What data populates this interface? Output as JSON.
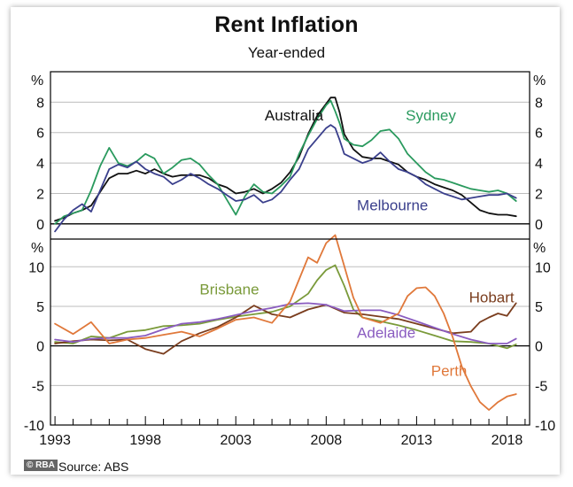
{
  "chart_data": {
    "type": "line",
    "title": "Rent Inflation",
    "subtitle": "Year-ended",
    "source": "Source:   ABS",
    "logo": "© RBA",
    "x_ticks": [
      "1993",
      "1998",
      "2003",
      "2008",
      "2013",
      "2018"
    ],
    "xlim": [
      1992.75,
      2019.25
    ],
    "panels": [
      {
        "name": "top",
        "unit_left": "%",
        "unit_right": "%",
        "ylim": [
          -1,
          10
        ],
        "y_ticks": [
          0,
          2,
          4,
          6,
          8
        ],
        "y_tick_labels": [
          "0",
          "2",
          "4",
          "6",
          "8"
        ],
        "grid": true,
        "series": [
          {
            "name": "Australia",
            "color": "#111111",
            "x": [
              1993.0,
              1993.5,
              1994.0,
              1994.5,
              1995.0,
              1995.5,
              1996.0,
              1996.5,
              1997.0,
              1997.5,
              1998.0,
              1998.5,
              1999.0,
              1999.5,
              2000.0,
              2000.5,
              2001.0,
              2001.5,
              2002.0,
              2002.5,
              2003.0,
              2003.5,
              2004.0,
              2004.5,
              2005.0,
              2005.5,
              2006.0,
              2006.5,
              2007.0,
              2007.5,
              2008.0,
              2008.25,
              2008.5,
              2008.75,
              2009.0,
              2009.5,
              2010.0,
              2010.5,
              2011.0,
              2011.5,
              2012.0,
              2012.5,
              2013.0,
              2013.5,
              2014.0,
              2014.5,
              2015.0,
              2015.5,
              2016.0,
              2016.5,
              2017.0,
              2017.5,
              2018.0,
              2018.5
            ],
            "y": [
              0.2,
              0.4,
              0.7,
              0.9,
              1.2,
              2.1,
              3.0,
              3.3,
              3.3,
              3.5,
              3.3,
              3.6,
              3.3,
              3.1,
              3.2,
              3.2,
              3.2,
              3.0,
              2.6,
              2.4,
              2.0,
              2.1,
              2.3,
              2.0,
              2.3,
              2.7,
              3.4,
              4.4,
              5.9,
              7.1,
              7.9,
              8.3,
              8.3,
              7.3,
              5.9,
              4.9,
              4.4,
              4.3,
              4.3,
              4.1,
              3.9,
              3.4,
              3.1,
              2.9,
              2.6,
              2.4,
              2.2,
              1.9,
              1.4,
              0.9,
              0.7,
              0.6,
              0.6,
              0.5
            ]
          },
          {
            "name": "Sydney",
            "color": "#2a9a5e",
            "x": [
              1993.0,
              1993.5,
              1994.0,
              1994.5,
              1995.0,
              1995.5,
              1996.0,
              1996.5,
              1997.0,
              1997.5,
              1998.0,
              1998.5,
              1999.0,
              1999.5,
              2000.0,
              2000.5,
              2001.0,
              2001.5,
              2002.0,
              2002.5,
              2003.0,
              2003.5,
              2004.0,
              2004.5,
              2005.0,
              2005.5,
              2006.0,
              2006.5,
              2007.0,
              2007.5,
              2008.0,
              2008.25,
              2008.5,
              2008.75,
              2009.0,
              2009.5,
              2010.0,
              2010.5,
              2011.0,
              2011.5,
              2012.0,
              2012.5,
              2013.0,
              2013.5,
              2014.0,
              2014.5,
              2015.0,
              2015.5,
              2016.0,
              2016.5,
              2017.0,
              2017.5,
              2018.0,
              2018.5
            ],
            "y": [
              0.0,
              0.5,
              0.7,
              0.9,
              2.2,
              3.8,
              5.0,
              4.0,
              3.8,
              4.1,
              4.6,
              4.3,
              3.3,
              3.7,
              4.2,
              4.3,
              3.9,
              3.2,
              2.6,
              1.6,
              0.6,
              1.8,
              2.6,
              2.1,
              2.0,
              2.5,
              3.1,
              4.6,
              5.8,
              6.9,
              7.8,
              8.1,
              7.4,
              6.6,
              5.6,
              5.2,
              5.1,
              5.5,
              6.1,
              6.2,
              5.6,
              4.6,
              4.0,
              3.4,
              3.0,
              2.9,
              2.7,
              2.5,
              2.3,
              2.2,
              2.1,
              2.2,
              2.0,
              1.5
            ]
          },
          {
            "name": "Melbourne",
            "color": "#3a3f8c",
            "x": [
              1993.0,
              1993.5,
              1994.0,
              1994.5,
              1995.0,
              1995.5,
              1996.0,
              1996.5,
              1997.0,
              1997.5,
              1998.0,
              1998.5,
              1999.0,
              1999.5,
              2000.0,
              2000.5,
              2001.0,
              2001.5,
              2002.0,
              2002.5,
              2003.0,
              2003.5,
              2004.0,
              2004.5,
              2005.0,
              2005.5,
              2006.0,
              2006.5,
              2007.0,
              2007.5,
              2008.0,
              2008.25,
              2008.5,
              2008.75,
              2009.0,
              2009.5,
              2010.0,
              2010.5,
              2011.0,
              2011.5,
              2012.0,
              2012.5,
              2013.0,
              2013.5,
              2014.0,
              2014.5,
              2015.0,
              2015.5,
              2016.0,
              2016.5,
              2017.0,
              2017.5,
              2018.0,
              2018.5
            ],
            "y": [
              -0.5,
              0.3,
              0.9,
              1.3,
              0.8,
              2.2,
              3.6,
              3.9,
              3.7,
              4.1,
              3.6,
              3.3,
              3.1,
              2.6,
              2.9,
              3.3,
              3.0,
              2.6,
              2.3,
              1.9,
              1.5,
              1.6,
              1.9,
              1.4,
              1.6,
              2.1,
              2.9,
              3.6,
              4.9,
              5.6,
              6.3,
              6.5,
              6.3,
              5.5,
              4.6,
              4.3,
              4.0,
              4.2,
              4.7,
              4.1,
              3.6,
              3.4,
              3.1,
              2.6,
              2.3,
              2.0,
              1.8,
              1.6,
              1.7,
              1.8,
              1.9,
              1.9,
              2.0,
              1.7
            ]
          }
        ],
        "labels": [
          {
            "text": "Australia",
            "series": "Australia",
            "x": 2004.6,
            "y": 6.8
          },
          {
            "text": "Sydney",
            "series": "Sydney",
            "x": 2012.4,
            "y": 6.8
          },
          {
            "text": "Melbourne",
            "series": "Melbourne",
            "x": 2009.7,
            "y": 0.9
          }
        ]
      },
      {
        "name": "bottom",
        "unit_left": "%",
        "unit_right": "%",
        "ylim": [
          -10,
          13.5
        ],
        "y_ticks": [
          -10,
          -5,
          0,
          5,
          10
        ],
        "y_tick_labels": [
          "-10",
          "-5",
          "0",
          "5",
          "10"
        ],
        "grid": true,
        "series": [
          {
            "name": "Brisbane",
            "color": "#7a9a3a",
            "x": [
              1993.0,
              1994.0,
              1995.0,
              1996.0,
              1997.0,
              1998.0,
              1999.0,
              2000.0,
              2001.0,
              2002.0,
              2003.0,
              2004.0,
              2005.0,
              2006.0,
              2007.0,
              2007.5,
              2008.0,
              2008.5,
              2009.0,
              2009.5,
              2010.0,
              2011.0,
              2012.0,
              2013.0,
              2014.0,
              2015.0,
              2016.0,
              2017.0,
              2018.0,
              2018.5
            ],
            "y": [
              0.5,
              0.3,
              1.2,
              1.0,
              1.8,
              2.0,
              2.5,
              2.6,
              2.8,
              3.3,
              3.7,
              4.0,
              4.3,
              5.0,
              6.6,
              8.3,
              9.6,
              10.2,
              7.6,
              4.6,
              3.6,
              3.1,
              2.6,
              2.0,
              1.3,
              0.6,
              0.5,
              0.3,
              -0.3,
              0.2
            ]
          },
          {
            "name": "Hobart",
            "color": "#7a3d1e",
            "x": [
              1993.0,
              1994.0,
              1995.0,
              1996.0,
              1997.0,
              1998.0,
              1999.0,
              2000.0,
              2001.0,
              2002.0,
              2003.0,
              2004.0,
              2005.0,
              2006.0,
              2007.0,
              2008.0,
              2009.0,
              2010.0,
              2011.0,
              2012.0,
              2013.0,
              2014.0,
              2015.0,
              2016.0,
              2016.5,
              2017.0,
              2017.5,
              2018.0,
              2018.5
            ],
            "y": [
              0.3,
              0.6,
              0.8,
              0.7,
              0.8,
              -0.4,
              -1.0,
              0.6,
              1.6,
              2.4,
              3.6,
              5.1,
              4.0,
              3.6,
              4.6,
              5.2,
              4.2,
              4.0,
              3.7,
              3.4,
              2.8,
              2.2,
              1.6,
              1.8,
              3.0,
              3.6,
              4.1,
              3.8,
              5.4
            ]
          },
          {
            "name": "Adelaide",
            "color": "#8a5cc0",
            "x": [
              1993.0,
              1994.0,
              1995.0,
              1996.0,
              1997.0,
              1998.0,
              1999.0,
              2000.0,
              2001.0,
              2002.0,
              2003.0,
              2004.0,
              2005.0,
              2006.0,
              2007.0,
              2008.0,
              2009.0,
              2010.0,
              2011.0,
              2012.0,
              2013.0,
              2014.0,
              2015.0,
              2016.0,
              2017.0,
              2018.0,
              2018.5
            ],
            "y": [
              0.8,
              0.5,
              0.9,
              1.0,
              1.0,
              1.3,
              2.1,
              2.8,
              3.0,
              3.4,
              3.9,
              4.4,
              4.8,
              5.3,
              5.4,
              5.2,
              4.4,
              4.5,
              4.5,
              3.9,
              3.1,
              2.3,
              1.5,
              0.8,
              0.3,
              0.3,
              0.9
            ]
          },
          {
            "name": "Perth",
            "color": "#e0783a",
            "x": [
              1993.0,
              1994.0,
              1995.0,
              1996.0,
              1997.0,
              1998.0,
              1999.0,
              2000.0,
              2001.0,
              2002.0,
              2003.0,
              2004.0,
              2005.0,
              2006.0,
              2006.5,
              2007.0,
              2007.5,
              2008.0,
              2008.5,
              2009.0,
              2009.5,
              2010.0,
              2011.0,
              2012.0,
              2012.5,
              2013.0,
              2013.5,
              2014.0,
              2014.5,
              2015.0,
              2015.5,
              2016.0,
              2016.5,
              2017.0,
              2017.5,
              2018.0,
              2018.5
            ],
            "y": [
              2.8,
              1.5,
              3.0,
              0.3,
              0.8,
              1.0,
              1.4,
              1.8,
              1.2,
              2.2,
              3.3,
              3.6,
              2.9,
              5.6,
              8.4,
              11.2,
              10.5,
              13.0,
              14.0,
              10.1,
              6.1,
              3.6,
              2.9,
              4.1,
              6.3,
              7.3,
              7.4,
              6.3,
              4.1,
              1.1,
              -2.6,
              -5.1,
              -7.1,
              -8.1,
              -7.1,
              -6.4,
              -6.1
            ]
          }
        ],
        "labels": [
          {
            "text": "Brisbane",
            "series": "Brisbane",
            "x": 2001.0,
            "y": 6.5
          },
          {
            "text": "Hobart",
            "series": "Hobart",
            "x": 2015.9,
            "y": 5.5
          },
          {
            "text": "Adelaide",
            "series": "Adelaide",
            "x": 2009.7,
            "y": 1.0
          },
          {
            "text": "Perth",
            "series": "Perth",
            "x": 2013.8,
            "y": -3.8
          }
        ]
      }
    ]
  }
}
